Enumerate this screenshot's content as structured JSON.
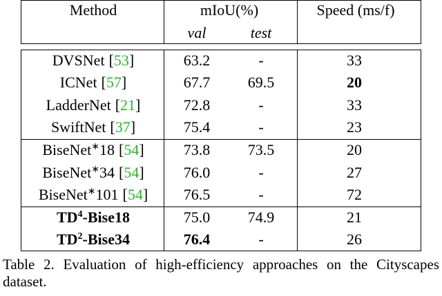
{
  "table": {
    "header": {
      "method": "Method",
      "miou": "mIoU(%)",
      "speed": "Speed (ms/f)",
      "val": "val",
      "test": "test"
    },
    "groups": [
      [
        {
          "name": "DVSNet",
          "cite": [
            "[",
            "53",
            "]"
          ],
          "val": "63.2",
          "test": "-",
          "speed": "33"
        },
        {
          "name": "ICNet",
          "cite": [
            "[",
            "57",
            "]"
          ],
          "val": "67.7",
          "test": "69.5",
          "speed": "20",
          "bold": [
            "speed"
          ]
        },
        {
          "name": "LadderNet",
          "cite": [
            "[",
            "21",
            "]"
          ],
          "val": "72.8",
          "test": "-",
          "speed": "33"
        },
        {
          "name": "SwiftNet",
          "cite": [
            "[",
            "37",
            "]"
          ],
          "val": "75.4",
          "test": "-",
          "speed": "23"
        }
      ],
      [
        {
          "name": "BiseNet",
          "sup": "∗",
          "suffix": "18",
          "cite": [
            "[",
            "54",
            "]"
          ],
          "val": "73.8",
          "test": "73.5",
          "speed": "20"
        },
        {
          "name": "BiseNet",
          "sup": "∗",
          "suffix": "34",
          "cite": [
            "[",
            "54",
            "]"
          ],
          "val": "76.0",
          "test": "-",
          "speed": "27"
        },
        {
          "name": "BiseNet",
          "sup": "∗",
          "suffix": "101",
          "cite": [
            "[",
            "54",
            "]"
          ],
          "val": "76.5",
          "test": "-",
          "speed": "72"
        }
      ],
      [
        {
          "name": "TD",
          "sup": "4",
          "suffix": "-Bise18",
          "val": "75.0",
          "test": "74.9",
          "speed": "21",
          "bold": [
            "name"
          ]
        },
        {
          "name": "TD",
          "sup": "2",
          "suffix": "-Bise34",
          "val": "76.4",
          "test": "-",
          "speed": "26",
          "bold": [
            "name",
            "val"
          ]
        }
      ]
    ]
  },
  "caption": "Table 2. Evaluation of high-efficiency approaches on the Cityscapes dataset."
}
